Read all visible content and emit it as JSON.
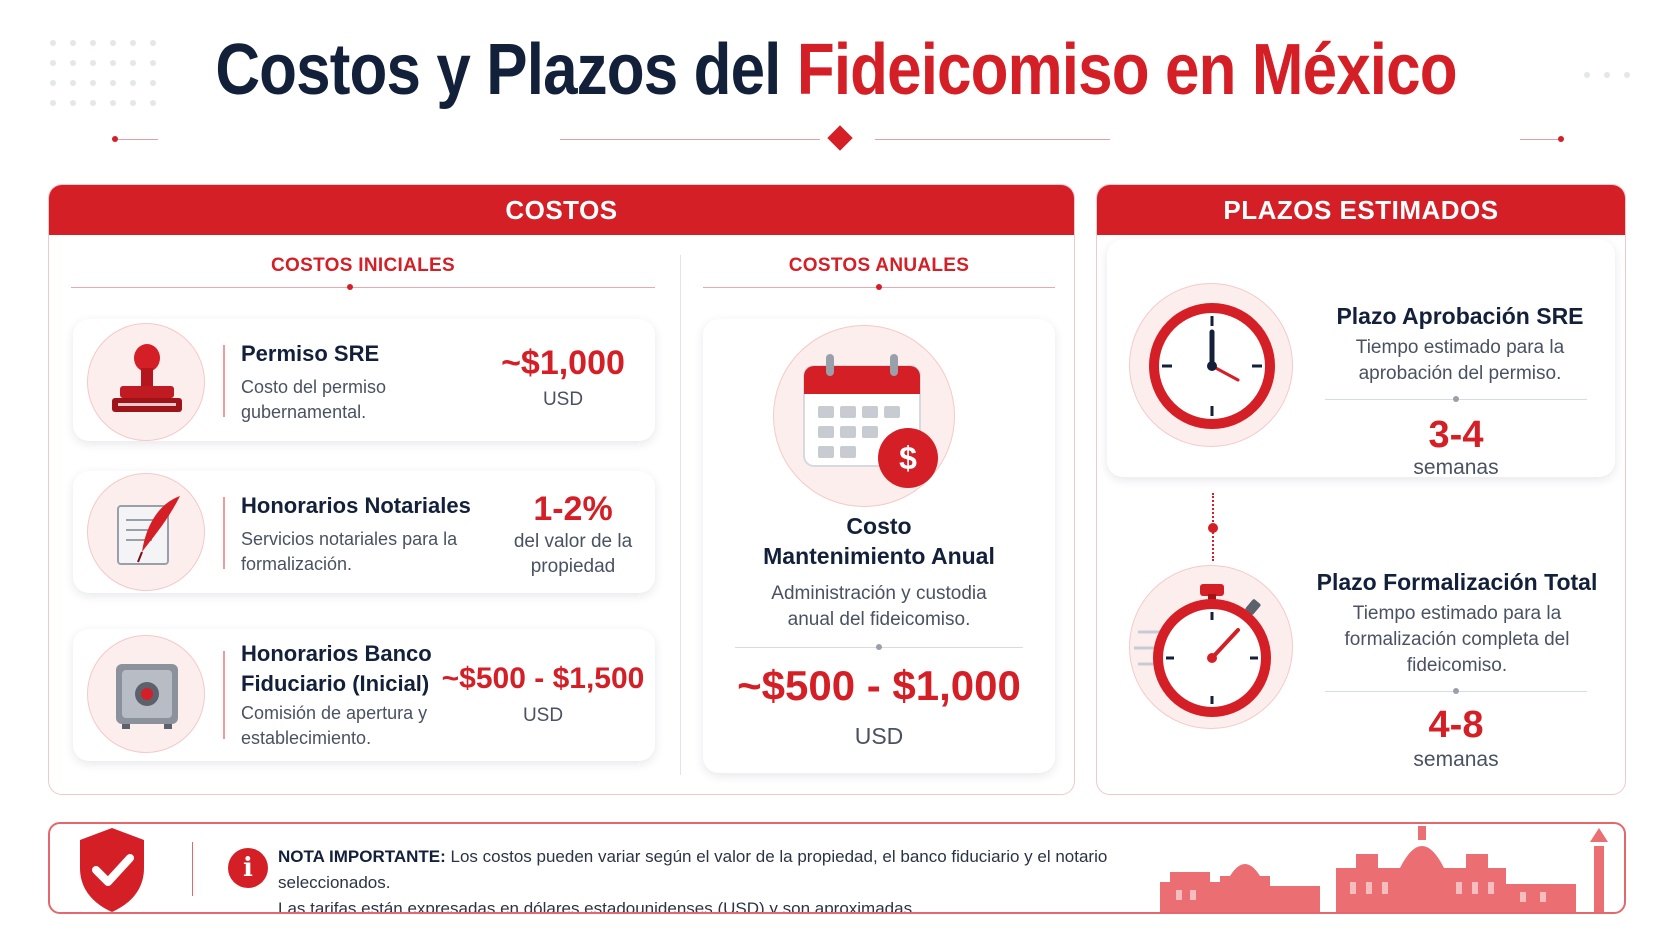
{
  "header": {
    "title_part1": "Costos y Plazos del",
    "title_part2": "Fideicomiso en México"
  },
  "costos": {
    "heading": "COSTOS",
    "iniciales": {
      "heading": "COSTOS INICIALES",
      "items": [
        {
          "title": "Permiso SRE",
          "desc": "Costo del permiso gubernamental.",
          "value": "~$1,000",
          "unit": "USD",
          "icon": "stamp-icon"
        },
        {
          "title": "Honorarios Notariales",
          "desc": "Servicios notariales para la formalización.",
          "value": "1-2%",
          "unit": "del valor de la propiedad",
          "icon": "quill-scroll-icon"
        },
        {
          "title": "Honorarios Banco Fiduciario (Inicial)",
          "desc": "Comisión de apertura y establecimiento.",
          "value": "~$500 - $1,500",
          "unit": "USD",
          "icon": "safe-icon"
        }
      ]
    },
    "anuales": {
      "heading": "COSTOS ANUALES",
      "title": "Costo Mantenimiento Anual",
      "desc": "Administración y custodia anual del fideicomiso.",
      "value": "~$500 - $1,000",
      "unit": "USD",
      "icon": "calendar-dollar-icon"
    }
  },
  "plazos": {
    "heading": "PLAZOS ESTIMADOS",
    "items": [
      {
        "title": "Plazo Aprobación SRE",
        "desc": "Tiempo estimado para la aprobación del permiso.",
        "value": "3-4",
        "unit": "semanas",
        "icon": "clock-icon"
      },
      {
        "title": "Plazo Formalización Total",
        "desc": "Tiempo estimado para la formalización completa del fideicomiso.",
        "value": "4-8",
        "unit": "semanas",
        "icon": "stopwatch-icon"
      }
    ]
  },
  "note": {
    "label": "NOTA IMPORTANTE:",
    "line1": "Los costos pueden variar según el valor de la propiedad, el banco fiduciario y el notario seleccionados.",
    "line2": "Las tarifas están expresadas en dólares estadounidenses (USD) y son aproximadas.",
    "icons": [
      "shield-check-icon",
      "info-icon",
      "mexico-city-skyline-icon"
    ]
  },
  "colors": {
    "accent": "#d41f26",
    "navy": "#13203a"
  }
}
